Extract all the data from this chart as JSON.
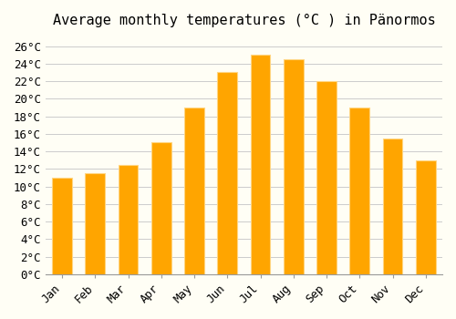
{
  "title": "Average monthly temperatures (°C ) in Pänormos",
  "months": [
    "Jan",
    "Feb",
    "Mar",
    "Apr",
    "May",
    "Jun",
    "Jul",
    "Aug",
    "Sep",
    "Oct",
    "Nov",
    "Dec"
  ],
  "values": [
    11,
    11.5,
    12.5,
    15,
    19,
    23,
    25,
    24.5,
    22,
    19,
    15.5,
    13
  ],
  "bar_color": "#FFA500",
  "bar_edge_color": "#FFD580",
  "background_color": "#FFFEF5",
  "grid_color": "#CCCCCC",
  "ylim": [
    0,
    27
  ],
  "yticks": [
    0,
    2,
    4,
    6,
    8,
    10,
    12,
    14,
    16,
    18,
    20,
    22,
    24,
    26
  ],
  "title_fontsize": 11,
  "tick_fontsize": 9,
  "font_family": "monospace"
}
